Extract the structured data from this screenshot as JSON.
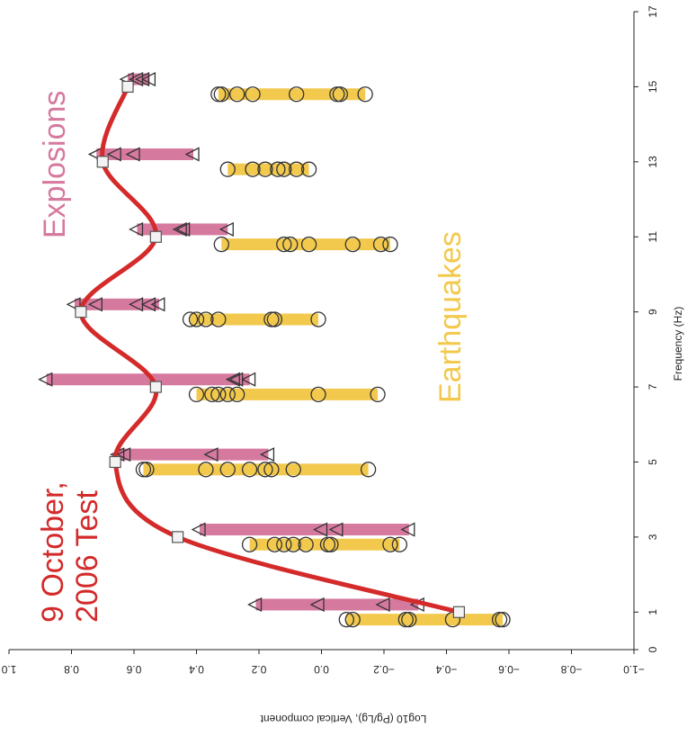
{
  "chart_data": {
    "type": "scatter",
    "orientation": "rotated-90-clockwise",
    "xlabel": "Frequency (Hz)",
    "ylabel": "Log10 (Pg/Lg), Vertical component",
    "xlim": [
      0,
      17
    ],
    "ylim": [
      -1.0,
      1.0
    ],
    "x_ticks": [
      "0",
      "1",
      "3",
      "5",
      "7",
      "9",
      "11",
      "13",
      "15",
      "17"
    ],
    "y_ticks": [
      "1.0",
      "0.8",
      "0.6",
      "0.4",
      "0.2",
      "0.0",
      "−0.2",
      "−0.4",
      "−0.6",
      "−0.8",
      "−1.0"
    ],
    "annotations": {
      "explosions": "Explosions",
      "earthquakes": "Earthquakes",
      "test_line1": "9 October,",
      "test_line2": "2006 Test"
    },
    "colors": {
      "explosion_bar": "#d6799f",
      "earthquake_bar": "#f2c94c",
      "test_curve": "#d42a2a",
      "marker_stroke": "#333333"
    },
    "series": [
      {
        "name": "Explosions",
        "marker": "triangle-left",
        "ranges": [
          {
            "x": 1.2,
            "min": -0.31,
            "max": 0.21,
            "points": [
              -0.31,
              -0.2,
              0.01,
              0.21
            ]
          },
          {
            "x": 3.2,
            "min": -0.28,
            "max": 0.39,
            "points": [
              -0.28,
              -0.05,
              0.0,
              0.39
            ]
          },
          {
            "x": 5.2,
            "min": 0.17,
            "max": 0.65,
            "points": [
              0.17,
              0.35,
              0.63,
              0.65
            ]
          },
          {
            "x": 7.2,
            "min": 0.23,
            "max": 0.88,
            "points": [
              0.23,
              0.27,
              0.28,
              0.88
            ]
          },
          {
            "x": 9.2,
            "min": 0.52,
            "max": 0.79,
            "points": [
              0.52,
              0.55,
              0.59,
              0.72,
              0.79
            ]
          },
          {
            "x": 11.2,
            "min": 0.3,
            "max": 0.59,
            "points": [
              0.3,
              0.44,
              0.45,
              0.59
            ]
          },
          {
            "x": 13.2,
            "min": 0.41,
            "max": 0.72,
            "points": [
              0.41,
              0.6,
              0.66,
              0.72
            ]
          },
          {
            "x": 15.2,
            "min": 0.55,
            "max": 0.62,
            "points": [
              0.55,
              0.57,
              0.59,
              0.62
            ]
          }
        ]
      },
      {
        "name": "Earthquakes",
        "marker": "circle",
        "ranges": [
          {
            "x": 0.8,
            "min": -0.58,
            "max": -0.08,
            "points": [
              -0.08,
              -0.1,
              -0.27,
              -0.28,
              -0.42,
              -0.57,
              -0.58
            ]
          },
          {
            "x": 2.8,
            "min": -0.25,
            "max": 0.23,
            "points": [
              -0.25,
              -0.22,
              -0.02,
              -0.03,
              0.05,
              0.09,
              0.12,
              0.15,
              0.23
            ]
          },
          {
            "x": 4.8,
            "min": -0.15,
            "max": 0.57,
            "points": [
              -0.15,
              0.09,
              0.16,
              0.18,
              0.23,
              0.3,
              0.37,
              0.56,
              0.57
            ]
          },
          {
            "x": 6.8,
            "min": -0.18,
            "max": 0.4,
            "points": [
              -0.18,
              0.01,
              0.27,
              0.3,
              0.33,
              0.35,
              0.4
            ]
          },
          {
            "x": 8.8,
            "min": 0.01,
            "max": 0.42,
            "points": [
              0.01,
              0.15,
              0.16,
              0.33,
              0.37,
              0.4,
              0.42
            ]
          },
          {
            "x": 10.8,
            "min": -0.22,
            "max": 0.32,
            "points": [
              -0.22,
              -0.19,
              -0.1,
              0.04,
              0.1,
              0.12,
              0.32
            ]
          },
          {
            "x": 12.8,
            "min": 0.04,
            "max": 0.3,
            "points": [
              0.04,
              0.08,
              0.12,
              0.14,
              0.18,
              0.22,
              0.3
            ]
          },
          {
            "x": 14.8,
            "min": -0.14,
            "max": 0.33,
            "points": [
              -0.14,
              -0.06,
              -0.05,
              0.08,
              0.22,
              0.27,
              0.32,
              0.33
            ]
          }
        ]
      },
      {
        "name": "9 October, 2006 Test",
        "marker": "square",
        "x": [
          1,
          3,
          5,
          7,
          9,
          11,
          13,
          15
        ],
        "y": [
          -0.44,
          0.46,
          0.66,
          0.53,
          0.77,
          0.53,
          0.7,
          0.62
        ]
      }
    ]
  }
}
